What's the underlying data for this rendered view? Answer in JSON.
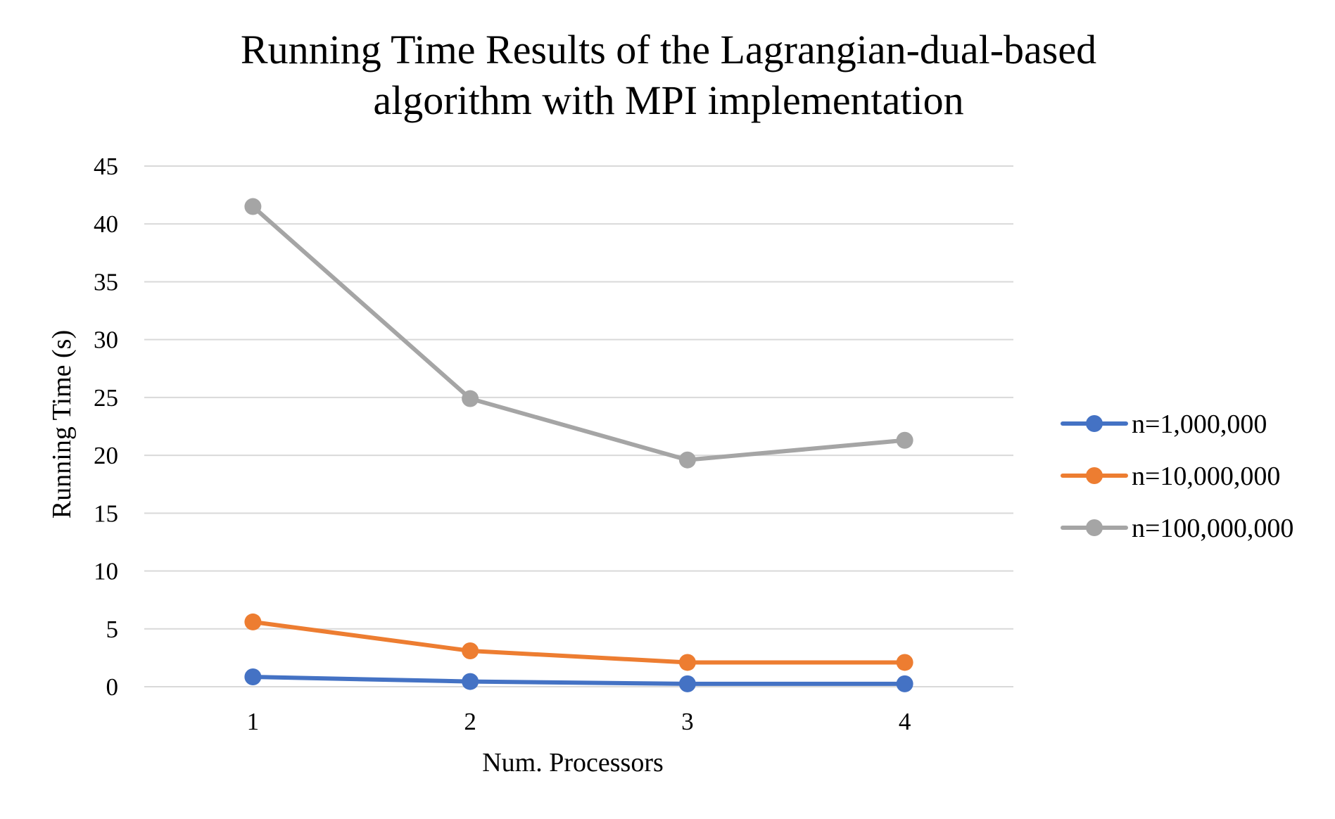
{
  "chart_data": {
    "type": "line",
    "title_lines": [
      "Running Time Results of the Lagrangian-dual-based",
      "algorithm with MPI implementation"
    ],
    "xlabel": "Num. Processors",
    "ylabel": "Running Time (s)",
    "categories": [
      "1",
      "2",
      "3",
      "4"
    ],
    "y_ticks": [
      "0",
      "5",
      "10",
      "15",
      "20",
      "25",
      "30",
      "35",
      "40",
      "45"
    ],
    "ylim": [
      0,
      45
    ],
    "grid": true,
    "legend_position": "right",
    "series": [
      {
        "name": "n=1,000,000",
        "color": "#4472C4",
        "values": [
          0.85,
          0.45,
          0.25,
          0.25
        ]
      },
      {
        "name": "n=10,000,000",
        "color": "#ED7D31",
        "values": [
          5.6,
          3.1,
          2.1,
          2.1
        ]
      },
      {
        "name": "n=100,000,000",
        "color": "#A5A5A5",
        "values": [
          41.5,
          24.9,
          19.6,
          21.3
        ]
      }
    ]
  }
}
